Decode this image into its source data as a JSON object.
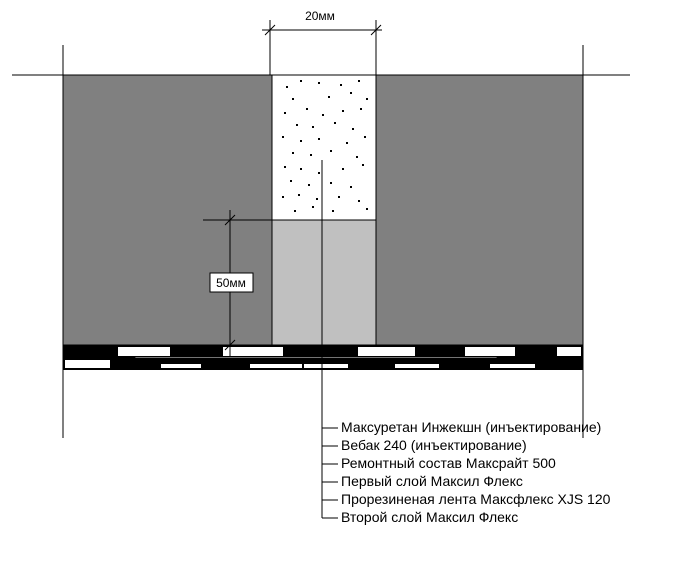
{
  "diagram": {
    "dimension_top": "20мм",
    "dimension_side": "50мм",
    "labels": [
      "Максуретан Инжекшн (инъектирование)",
      "Вебак 240 (инъектирование)",
      "Ремонтный состав Максрайт 500",
      "Первый слой Максил Флекс",
      "Прорезиненая лента Максфлекс XJS 120",
      "Второй слой Максил Флекс"
    ],
    "colors": {
      "concrete": "#808080",
      "repair_mortar": "#c0c0c0",
      "foam_fill": "#ffffff",
      "stroke": "#000000"
    }
  }
}
